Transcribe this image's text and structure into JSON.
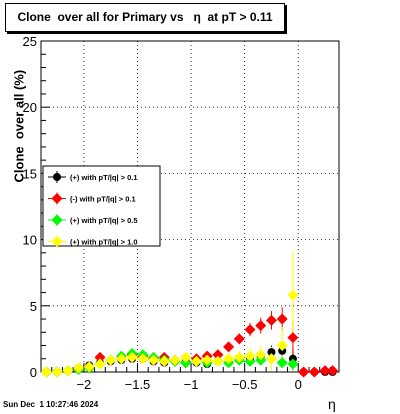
{
  "chart_data": {
    "type": "scatter",
    "title": "Clone  over all for Primary vs   η  at pT > 0.11",
    "xlabel": "η",
    "ylabel": "Clone  over all (%)",
    "xlim": [
      -2.4,
      0.38
    ],
    "ylim": [
      0,
      25
    ],
    "x_ticks": [
      -2,
      -1.5,
      -1,
      -0.5,
      0
    ],
    "x_tick_labels": [
      "−2",
      "−1.5",
      "−1",
      "−0.5",
      "0"
    ],
    "y_ticks": [
      0,
      5,
      10,
      15,
      20,
      25
    ],
    "y_tick_labels": [
      "0",
      "5",
      "10",
      "15",
      "20",
      "25"
    ],
    "grid": true,
    "legend_position": "center-left",
    "series": [
      {
        "name": "(+) with pT/|q| > 0.1",
        "color": "#000000",
        "marker": "circle",
        "x": [
          -2.35,
          -2.25,
          -2.15,
          -2.05,
          -1.95,
          -1.85,
          -1.75,
          -1.65,
          -1.55,
          -1.45,
          -1.35,
          -1.25,
          -1.15,
          -1.05,
          -0.95,
          -0.85,
          -0.75,
          -0.65,
          -0.55,
          -0.45,
          -0.35,
          -0.25,
          -0.15,
          -0.05,
          0.05,
          0.15,
          0.25,
          0.32
        ],
        "y": [
          0,
          0,
          0.1,
          0.3,
          0.5,
          0.7,
          0.8,
          0.9,
          1.0,
          1.0,
          0.8,
          0.7,
          0.8,
          0.8,
          0.7,
          0.6,
          0.8,
          0.7,
          0.9,
          1.0,
          1.2,
          1.5,
          1.6,
          1.0,
          0,
          0,
          0,
          0
        ],
        "err": [
          0,
          0,
          0.1,
          0.2,
          0.2,
          0.2,
          0.2,
          0.2,
          0.2,
          0.2,
          0.2,
          0.2,
          0.2,
          0.2,
          0.2,
          0.2,
          0.2,
          0.2,
          0.3,
          0.3,
          0.4,
          0.5,
          0.7,
          0.8,
          0,
          0,
          0,
          0
        ]
      },
      {
        "name": "(-) with pT/|q| > 0.1",
        "color": "#ff0000",
        "marker": "diamond",
        "x": [
          -2.35,
          -2.25,
          -2.15,
          -2.05,
          -1.95,
          -1.85,
          -1.75,
          -1.65,
          -1.55,
          -1.45,
          -1.35,
          -1.25,
          -1.15,
          -1.05,
          -0.95,
          -0.85,
          -0.75,
          -0.65,
          -0.55,
          -0.45,
          -0.35,
          -0.25,
          -0.15,
          -0.05,
          0.05,
          0.15,
          0.25,
          0.32
        ],
        "y": [
          0,
          0,
          0.1,
          0.2,
          0.3,
          1.1,
          0.9,
          1.0,
          1.3,
          1.2,
          1.0,
          1.1,
          0.9,
          0.7,
          1.0,
          1.2,
          1.3,
          1.9,
          2.5,
          3.2,
          3.5,
          3.9,
          4.0,
          2.6,
          0,
          0,
          0.1,
          0.1
        ],
        "err": [
          0,
          0,
          0.1,
          0.2,
          0.2,
          0.2,
          0.2,
          0.2,
          0.2,
          0.2,
          0.2,
          0.2,
          0.2,
          0.2,
          0.2,
          0.2,
          0.3,
          0.3,
          0.4,
          0.5,
          0.6,
          0.7,
          0.9,
          1.2,
          0,
          0,
          0.1,
          0.1
        ]
      },
      {
        "name": "(+) with pT/|q| > 0.5",
        "color": "#00ff00",
        "marker": "diamond",
        "x": [
          -2.35,
          -2.25,
          -2.15,
          -2.05,
          -1.95,
          -1.85,
          -1.75,
          -1.65,
          -1.55,
          -1.45,
          -1.35,
          -1.25,
          -1.15,
          -1.05,
          -0.95,
          -0.85,
          -0.75,
          -0.65,
          -0.55,
          -0.45,
          -0.35,
          -0.25,
          -0.15,
          -0.05
        ],
        "y": [
          0,
          0,
          0.1,
          0.2,
          0.3,
          0.6,
          0.9,
          1.2,
          1.4,
          1.3,
          1.1,
          0.9,
          0.8,
          0.7,
          0.8,
          0.7,
          0.8,
          0.7,
          0.9,
          0.8,
          0.9,
          1.0,
          0.7,
          0.6
        ],
        "err": [
          0,
          0,
          0.1,
          0.2,
          0.2,
          0.2,
          0.2,
          0.2,
          0.2,
          0.2,
          0.2,
          0.2,
          0.2,
          0.2,
          0.2,
          0.2,
          0.2,
          0.3,
          0.3,
          0.3,
          0.3,
          0.4,
          0.4,
          0.5
        ]
      },
      {
        "name": "(+) with pT/|q| > 1.0",
        "color": "#ffff00",
        "marker": "diamond",
        "x": [
          -2.35,
          -2.25,
          -2.15,
          -2.05,
          -1.95,
          -1.85,
          -1.75,
          -1.65,
          -1.55,
          -1.45,
          -1.35,
          -1.25,
          -1.15,
          -1.05,
          -0.95,
          -0.85,
          -0.75,
          -0.65,
          -0.55,
          -0.45,
          -0.35,
          -0.25,
          -0.15,
          -0.05
        ],
        "y": [
          0,
          0,
          0.1,
          0.3,
          0.4,
          0.6,
          0.9,
          1.0,
          1.1,
          1.0,
          0.9,
          0.8,
          0.9,
          1.1,
          0.8,
          0.9,
          0.8,
          1.0,
          1.1,
          1.2,
          1.3,
          1.0,
          2.0,
          5.8
        ],
        "err": [
          0,
          0,
          0.1,
          0.2,
          0.2,
          0.2,
          0.2,
          0.2,
          0.2,
          0.2,
          0.2,
          0.2,
          0.2,
          0.3,
          0.3,
          0.3,
          0.3,
          0.4,
          0.5,
          0.6,
          0.7,
          0.9,
          1.4,
          3.3
        ]
      }
    ]
  },
  "footer": "Sun Dec  1 10:27:46 2024"
}
